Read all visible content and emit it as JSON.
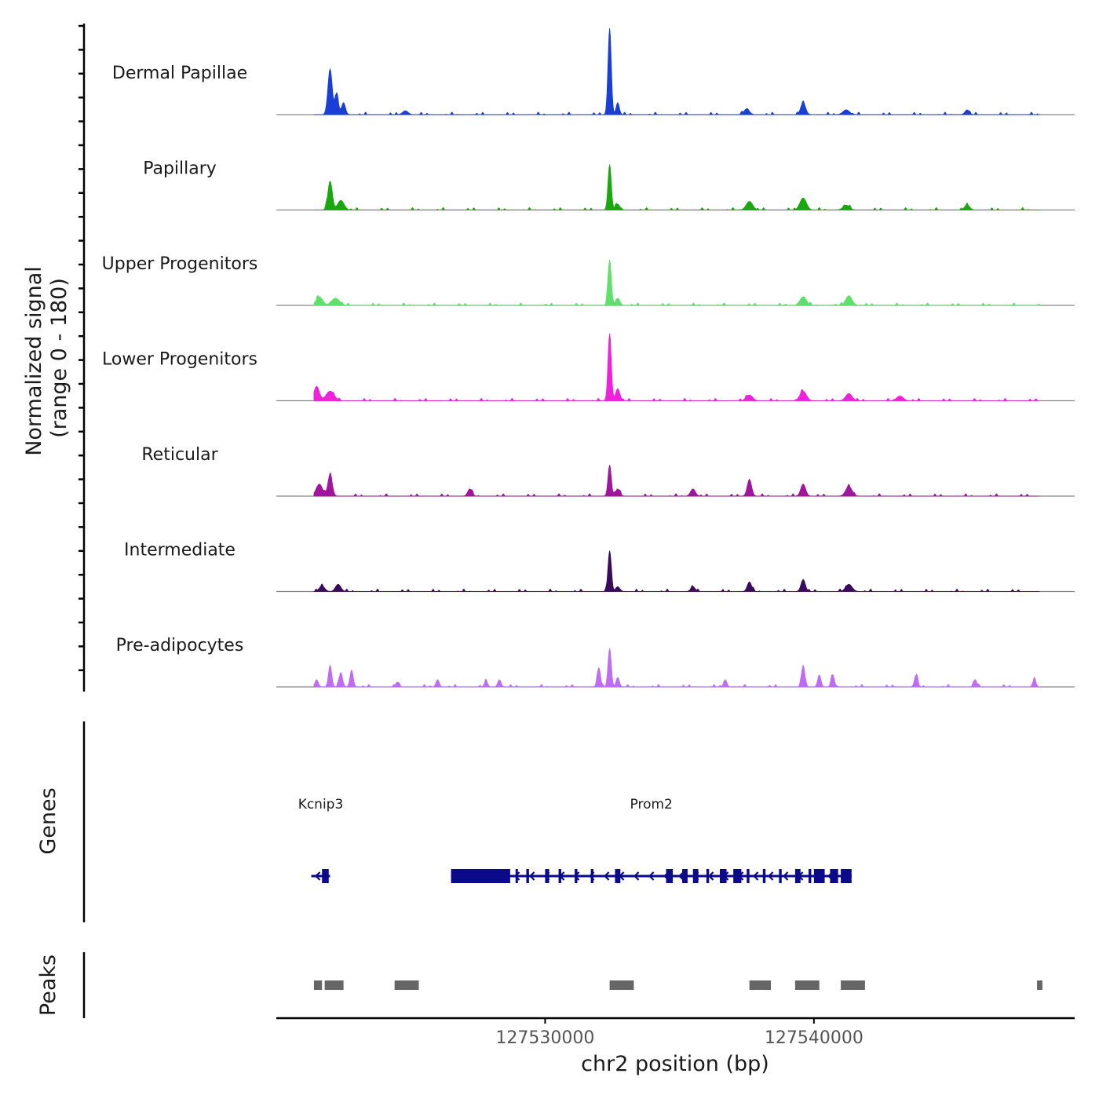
{
  "chart_data": {
    "type": "area",
    "title": "",
    "ylabel_line1": "Normalized signal",
    "ylabel_line2": "(range 0 - 180)",
    "xlabel": "chr2 position (bp)",
    "ylim": [
      0,
      180
    ],
    "xlim": [
      127520000,
      127549700
    ],
    "x_ticks": [
      127530000,
      127540000
    ],
    "x_tick_labels": [
      "127530000",
      "127540000"
    ],
    "coverage_x_start": 127521400,
    "coverage_x_end": 127548400,
    "series": [
      {
        "name": "Dermal Papillae",
        "color": "#1a3fd6",
        "peaks": [
          [
            127522000,
            95,
            80
          ],
          [
            127522250,
            45,
            60
          ],
          [
            127522500,
            25,
            70
          ],
          [
            127532400,
            180,
            60
          ],
          [
            127532700,
            25,
            60
          ],
          [
            127539600,
            25,
            90
          ],
          [
            127537500,
            12,
            100
          ],
          [
            127541200,
            10,
            120
          ],
          [
            127524800,
            8,
            100
          ],
          [
            127545700,
            10,
            80
          ]
        ]
      },
      {
        "name": "Papillary",
        "color": "#1aa80f",
        "peaks": [
          [
            127522000,
            60,
            80
          ],
          [
            127522400,
            20,
            120
          ],
          [
            127532400,
            95,
            60
          ],
          [
            127532700,
            12,
            80
          ],
          [
            127537600,
            18,
            120
          ],
          [
            127539600,
            25,
            120
          ],
          [
            127541200,
            10,
            120
          ],
          [
            127545700,
            10,
            100
          ]
        ]
      },
      {
        "name": "Upper Progenitors",
        "color": "#5fe06a",
        "peaks": [
          [
            127521600,
            18,
            120
          ],
          [
            127522200,
            15,
            150
          ],
          [
            127532400,
            95,
            60
          ],
          [
            127532700,
            15,
            80
          ],
          [
            127539600,
            18,
            120
          ],
          [
            127541300,
            20,
            120
          ]
        ]
      },
      {
        "name": "Lower Progenitors",
        "color": "#ee22dd",
        "peaks": [
          [
            127521500,
            30,
            100
          ],
          [
            127522000,
            20,
            150
          ],
          [
            127532400,
            140,
            60
          ],
          [
            127532700,
            25,
            80
          ],
          [
            127537600,
            12,
            120
          ],
          [
            127539600,
            20,
            120
          ],
          [
            127541300,
            15,
            120
          ],
          [
            127543200,
            10,
            120
          ]
        ]
      },
      {
        "name": "Reticular",
        "color": "#a0159e",
        "peaks": [
          [
            127521600,
            25,
            120
          ],
          [
            127522000,
            45,
            80
          ],
          [
            127527200,
            15,
            80
          ],
          [
            127532400,
            65,
            60
          ],
          [
            127532700,
            15,
            80
          ],
          [
            127535500,
            15,
            90
          ],
          [
            127537600,
            35,
            80
          ],
          [
            127539600,
            25,
            90
          ],
          [
            127541300,
            20,
            120
          ]
        ]
      },
      {
        "name": "Intermediate",
        "color": "#3a0a5c",
        "peaks": [
          [
            127521700,
            12,
            100
          ],
          [
            127522300,
            15,
            100
          ],
          [
            127532400,
            85,
            60
          ],
          [
            127532700,
            10,
            80
          ],
          [
            127535500,
            10,
            80
          ],
          [
            127537600,
            20,
            80
          ],
          [
            127539600,
            25,
            80
          ],
          [
            127541300,
            15,
            120
          ]
        ]
      },
      {
        "name": "Pre-adipocytes",
        "color": "#c06cf2",
        "peaks": [
          [
            127522000,
            45,
            60
          ],
          [
            127522400,
            30,
            60
          ],
          [
            127522800,
            35,
            60
          ],
          [
            127521500,
            15,
            60
          ],
          [
            127524500,
            10,
            60
          ],
          [
            127526000,
            15,
            60
          ],
          [
            127527800,
            12,
            60
          ],
          [
            127528300,
            15,
            60
          ],
          [
            127532000,
            40,
            60
          ],
          [
            127532400,
            80,
            60
          ],
          [
            127532700,
            20,
            60
          ],
          [
            127536700,
            15,
            60
          ],
          [
            127539600,
            45,
            60
          ],
          [
            127540200,
            25,
            60
          ],
          [
            127540700,
            25,
            60
          ],
          [
            127543800,
            25,
            60
          ],
          [
            127546000,
            15,
            60
          ],
          [
            127548200,
            15,
            60
          ]
        ]
      }
    ],
    "genes": [
      {
        "name": "Kcnip3",
        "strand": "-",
        "start": 127521300,
        "end": 127522000,
        "exons": [
          [
            127521700,
            127521950
          ]
        ]
      },
      {
        "name": "Prom2",
        "strand": "-",
        "start": 127526500,
        "end": 127541400,
        "exons": [
          [
            127526500,
            127528700
          ],
          [
            127528900,
            127528950
          ],
          [
            127529300,
            127529400
          ],
          [
            127530000,
            127530150
          ],
          [
            127530500,
            127530600
          ],
          [
            127531100,
            127531200
          ],
          [
            127531700,
            127531800
          ],
          [
            127532600,
            127532800
          ],
          [
            127534500,
            127534750
          ],
          [
            127535100,
            127535300
          ],
          [
            127535500,
            127535700
          ],
          [
            127536000,
            127536100
          ],
          [
            127536500,
            127536750
          ],
          [
            127537000,
            127537300
          ],
          [
            127537500,
            127537600
          ],
          [
            127538100,
            127538200
          ],
          [
            127538700,
            127538800
          ],
          [
            127539300,
            127539500
          ],
          [
            127539800,
            127539900
          ],
          [
            127540000,
            127540400
          ],
          [
            127540600,
            127540900
          ],
          [
            127541000,
            127541400
          ]
        ]
      }
    ],
    "peaks_track": [
      [
        127521400,
        127521700
      ],
      [
        127521800,
        127522500
      ],
      [
        127524400,
        127525300
      ],
      [
        127532400,
        127533300
      ],
      [
        127537600,
        127538400
      ],
      [
        127539300,
        127540200
      ],
      [
        127541000,
        127541900
      ],
      [
        127548300,
        127548500
      ]
    ],
    "track_labels": {
      "genes": "Genes",
      "peaks": "Peaks"
    }
  }
}
